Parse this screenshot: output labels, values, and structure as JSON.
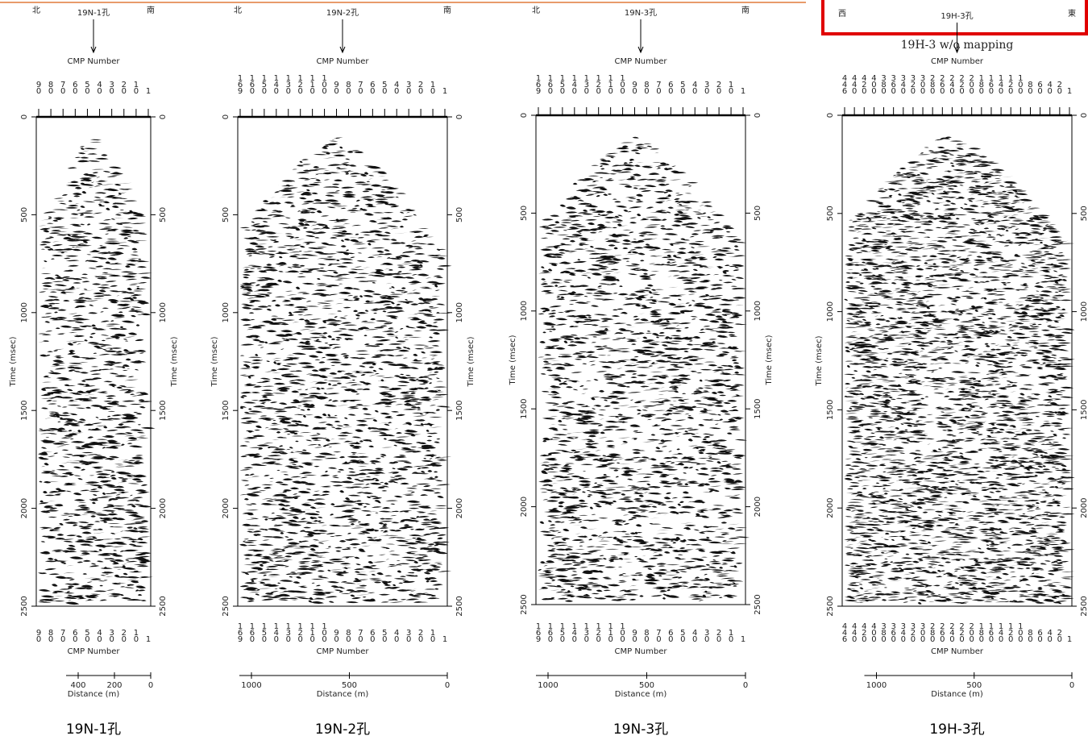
{
  "panels": [
    {
      "left_dir": "北",
      "right_dir": "南",
      "hole_label": "19N-1孔",
      "cmp_title": "CMP Number",
      "cmp_labels": [
        "90",
        "80",
        "70",
        "60",
        "50",
        "40",
        "30",
        "20",
        "10",
        "1"
      ],
      "time_label": "Time (msec)",
      "time_ticks": [
        0,
        500,
        1000,
        1500,
        2000,
        2500
      ],
      "distance_label": "Distance (m)",
      "distance_ticks": [
        400,
        200,
        0
      ],
      "caption": "19N-1孔"
    },
    {
      "left_dir": "北",
      "right_dir": "南",
      "hole_label": "19N-2孔",
      "cmp_title": "CMP Number",
      "cmp_labels": [
        "169",
        "160",
        "150",
        "140",
        "130",
        "120",
        "110",
        "100",
        "90",
        "80",
        "70",
        "60",
        "50",
        "40",
        "30",
        "20",
        "10",
        "1"
      ],
      "time_label": "Time (msec)",
      "time_ticks": [
        0,
        500,
        1000,
        1500,
        2000,
        2500
      ],
      "distance_label": "Distance (m)",
      "distance_ticks": [
        1000,
        500,
        0
      ],
      "caption": "19N-2孔"
    },
    {
      "left_dir": "北",
      "right_dir": "南",
      "hole_label": "19N-3孔",
      "cmp_title": "CMP Number",
      "cmp_labels": [
        "169",
        "160",
        "150",
        "140",
        "130",
        "120",
        "110",
        "100",
        "90",
        "80",
        "70",
        "60",
        "50",
        "40",
        "30",
        "20",
        "10",
        "1"
      ],
      "time_label": "Time (msec)",
      "time_ticks": [
        0,
        500,
        1000,
        1500,
        2000,
        2500
      ],
      "distance_label": "Distance (m)",
      "distance_ticks": [
        1000,
        500,
        0
      ],
      "caption": "19N-3孔"
    },
    {
      "left_dir": "西",
      "right_dir": "東",
      "hole_label": "19H-3孔",
      "subtitle": "19H-3  w/o mapping",
      "cmp_title": "CMP Number",
      "cmp_labels": [
        "446",
        "440",
        "420",
        "400",
        "380",
        "360",
        "340",
        "320",
        "300",
        "280",
        "260",
        "240",
        "220",
        "200",
        "180",
        "160",
        "140",
        "120",
        "100",
        "80",
        "60",
        "40",
        "20",
        "1"
      ],
      "time_label": "Time (msec)",
      "time_ticks": [
        0,
        500,
        1000,
        1500,
        2000,
        2500
      ],
      "distance_label": "Distance (m)",
      "distance_ticks": [
        1000,
        500,
        0
      ],
      "caption": "19H-3孔"
    }
  ]
}
